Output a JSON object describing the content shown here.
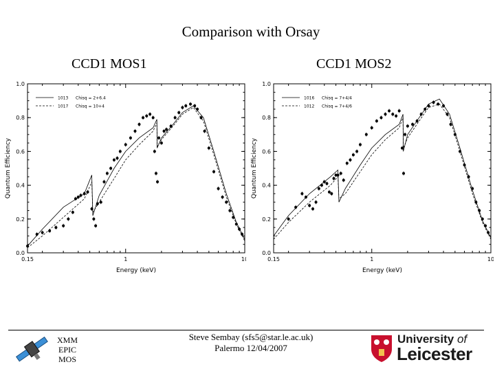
{
  "slide": {
    "title": "Comparison with Orsay",
    "left_heading": "CCD1  MOS1",
    "right_heading": "CCD1  MOS2"
  },
  "footer": {
    "mos_label": [
      "XMM",
      "EPIC",
      "MOS"
    ],
    "author": "Steve Sembay (sfs5@star.le.ac.uk)",
    "venue": "Palermo 12/04/2007",
    "logo": {
      "line1_prefix": "University ",
      "line1_of": "of",
      "line2": "Leicester",
      "colors": {
        "shield_red": "#c8102e",
        "text": "#1a1a1a"
      }
    },
    "satellite_icon": "satellite-icon"
  },
  "chart_data": [
    {
      "type": "scatter",
      "title": "",
      "xlabel": "Energy (keV)",
      "ylabel": "Quantum Efficiency",
      "xscale": "log",
      "xlim": [
        0.15,
        10
      ],
      "ylim": [
        0.0,
        1.0
      ],
      "x_ticks": [
        {
          "value": 0.15,
          "label": "0.15"
        },
        {
          "value": 1,
          "label": "1"
        },
        {
          "value": 10,
          "label": "10"
        }
      ],
      "y_ticks": [
        {
          "value": 0.0,
          "label": "0.0"
        },
        {
          "value": 0.2,
          "label": "0.2"
        },
        {
          "value": 0.4,
          "label": "0.4"
        },
        {
          "value": 0.6,
          "label": "0.6"
        },
        {
          "value": 0.8,
          "label": "0.8"
        },
        {
          "value": 1.0,
          "label": "1.0"
        }
      ],
      "legend": {
        "placement": "top-left",
        "entries": [
          {
            "label": "1013",
            "stat": "Chisq = 2+6.4",
            "style": "solid"
          },
          {
            "label": "1017",
            "stat": "Chisq = 10+4",
            "style": "dashed"
          }
        ]
      },
      "series": [
        {
          "style": "solid",
          "x": [
            0.15,
            0.2,
            0.3,
            0.45,
            0.52,
            0.53,
            0.6,
            0.8,
            1.0,
            1.3,
            1.7,
            1.83,
            1.84,
            2.0,
            2.5,
            3.0,
            3.7,
            4.5,
            5.5,
            7,
            8.5,
            10
          ],
          "y": [
            0.04,
            0.14,
            0.27,
            0.35,
            0.46,
            0.22,
            0.34,
            0.5,
            0.6,
            0.68,
            0.74,
            0.79,
            0.62,
            0.68,
            0.76,
            0.83,
            0.87,
            0.8,
            0.6,
            0.35,
            0.18,
            0.08
          ]
        },
        {
          "style": "dashed",
          "x": [
            0.15,
            0.2,
            0.3,
            0.45,
            0.52,
            0.53,
            0.6,
            0.8,
            1.0,
            1.3,
            1.7,
            1.83,
            1.84,
            2.0,
            2.5,
            3.0,
            3.7,
            4.5,
            5.5,
            7,
            8.5,
            10
          ],
          "y": [
            0.03,
            0.1,
            0.21,
            0.32,
            0.42,
            0.24,
            0.3,
            0.44,
            0.55,
            0.64,
            0.72,
            0.77,
            0.63,
            0.67,
            0.75,
            0.82,
            0.86,
            0.78,
            0.58,
            0.33,
            0.17,
            0.07
          ]
        },
        {
          "style": "points",
          "x": [
            0.15,
            0.18,
            0.2,
            0.23,
            0.26,
            0.3,
            0.33,
            0.36,
            0.38,
            0.4,
            0.42,
            0.45,
            0.48,
            0.52,
            0.54,
            0.56,
            0.58,
            0.62,
            0.66,
            0.7,
            0.75,
            0.8,
            0.85,
            0.9,
            1.0,
            1.1,
            1.2,
            1.3,
            1.4,
            1.5,
            1.6,
            1.7,
            1.75,
            1.8,
            1.85,
            1.9,
            2.0,
            2.1,
            2.2,
            2.4,
            2.6,
            2.8,
            3.0,
            3.2,
            3.5,
            3.8,
            4.0,
            4.3,
            4.6,
            5.0,
            5.5,
            6.0,
            6.5,
            7.0,
            7.5,
            8.0,
            8.5,
            9.0,
            9.5
          ],
          "y": [
            0.04,
            0.11,
            0.12,
            0.13,
            0.15,
            0.16,
            0.2,
            0.24,
            0.32,
            0.33,
            0.34,
            0.35,
            0.36,
            0.26,
            0.2,
            0.16,
            0.29,
            0.3,
            0.42,
            0.47,
            0.5,
            0.55,
            0.56,
            0.6,
            0.64,
            0.68,
            0.72,
            0.76,
            0.8,
            0.81,
            0.82,
            0.8,
            0.6,
            0.47,
            0.42,
            0.68,
            0.65,
            0.72,
            0.73,
            0.75,
            0.8,
            0.83,
            0.86,
            0.87,
            0.88,
            0.87,
            0.85,
            0.8,
            0.72,
            0.62,
            0.48,
            0.38,
            0.33,
            0.3,
            0.25,
            0.21,
            0.17,
            0.14,
            0.11
          ]
        }
      ]
    },
    {
      "type": "scatter",
      "title": "",
      "xlabel": "Energy (keV)",
      "ylabel": "Quantum Efficiency",
      "xscale": "log",
      "xlim": [
        0.15,
        10
      ],
      "ylim": [
        0.0,
        1.0
      ],
      "x_ticks": [
        {
          "value": 0.15,
          "label": "0.15"
        },
        {
          "value": 1,
          "label": "1"
        },
        {
          "value": 10,
          "label": "10"
        }
      ],
      "y_ticks": [
        {
          "value": 0.0,
          "label": "0.0"
        },
        {
          "value": 0.2,
          "label": "0.2"
        },
        {
          "value": 0.4,
          "label": "0.4"
        },
        {
          "value": 0.6,
          "label": "0.6"
        },
        {
          "value": 0.8,
          "label": "0.8"
        },
        {
          "value": 1.0,
          "label": "1.0"
        }
      ],
      "legend": {
        "placement": "top-left",
        "entries": [
          {
            "label": "1016",
            "stat": "Chisq = 7+4/4",
            "style": "solid"
          },
          {
            "label": "1012",
            "stat": "Chisq = 7+4/6",
            "style": "dashed"
          }
        ]
      },
      "series": [
        {
          "style": "solid",
          "x": [
            0.15,
            0.2,
            0.3,
            0.45,
            0.52,
            0.53,
            0.6,
            0.8,
            1.0,
            1.3,
            1.7,
            1.83,
            1.84,
            2.0,
            2.5,
            3.0,
            3.7,
            4.5,
            5.5,
            7,
            8.5,
            10
          ],
          "y": [
            0.1,
            0.22,
            0.35,
            0.45,
            0.49,
            0.3,
            0.38,
            0.52,
            0.62,
            0.7,
            0.76,
            0.82,
            0.6,
            0.7,
            0.8,
            0.88,
            0.91,
            0.82,
            0.62,
            0.37,
            0.19,
            0.09
          ]
        },
        {
          "style": "dashed",
          "x": [
            0.15,
            0.2,
            0.3,
            0.45,
            0.52,
            0.53,
            0.6,
            0.8,
            1.0,
            1.3,
            1.7,
            1.83,
            1.84,
            2.0,
            2.5,
            3.0,
            3.7,
            4.5,
            5.5,
            7,
            8.5,
            10
          ],
          "y": [
            0.08,
            0.18,
            0.3,
            0.4,
            0.45,
            0.32,
            0.35,
            0.48,
            0.58,
            0.67,
            0.74,
            0.8,
            0.62,
            0.68,
            0.78,
            0.86,
            0.88,
            0.8,
            0.6,
            0.35,
            0.18,
            0.08
          ]
        },
        {
          "style": "points",
          "x": [
            0.2,
            0.23,
            0.26,
            0.28,
            0.3,
            0.32,
            0.34,
            0.36,
            0.38,
            0.4,
            0.42,
            0.44,
            0.46,
            0.48,
            0.5,
            0.52,
            0.55,
            0.58,
            0.62,
            0.66,
            0.7,
            0.75,
            0.8,
            0.9,
            1.0,
            1.1,
            1.2,
            1.3,
            1.4,
            1.5,
            1.6,
            1.7,
            1.8,
            1.85,
            1.9,
            2.0,
            2.2,
            2.4,
            2.6,
            2.8,
            3.0,
            3.3,
            3.6,
            4.0,
            4.3,
            4.6,
            5.0,
            5.5,
            6.0,
            6.5,
            7.0,
            7.5,
            8.0,
            8.5,
            9.0,
            9.5
          ],
          "y": [
            0.2,
            0.27,
            0.35,
            0.33,
            0.28,
            0.26,
            0.3,
            0.38,
            0.4,
            0.42,
            0.41,
            0.36,
            0.35,
            0.44,
            0.46,
            0.46,
            0.47,
            0.43,
            0.53,
            0.55,
            0.58,
            0.6,
            0.64,
            0.7,
            0.74,
            0.78,
            0.8,
            0.82,
            0.84,
            0.82,
            0.81,
            0.84,
            0.62,
            0.47,
            0.7,
            0.75,
            0.76,
            0.78,
            0.82,
            0.85,
            0.87,
            0.89,
            0.88,
            0.87,
            0.82,
            0.76,
            0.7,
            0.6,
            0.52,
            0.45,
            0.38,
            0.3,
            0.25,
            0.2,
            0.16,
            0.12
          ]
        }
      ]
    }
  ]
}
